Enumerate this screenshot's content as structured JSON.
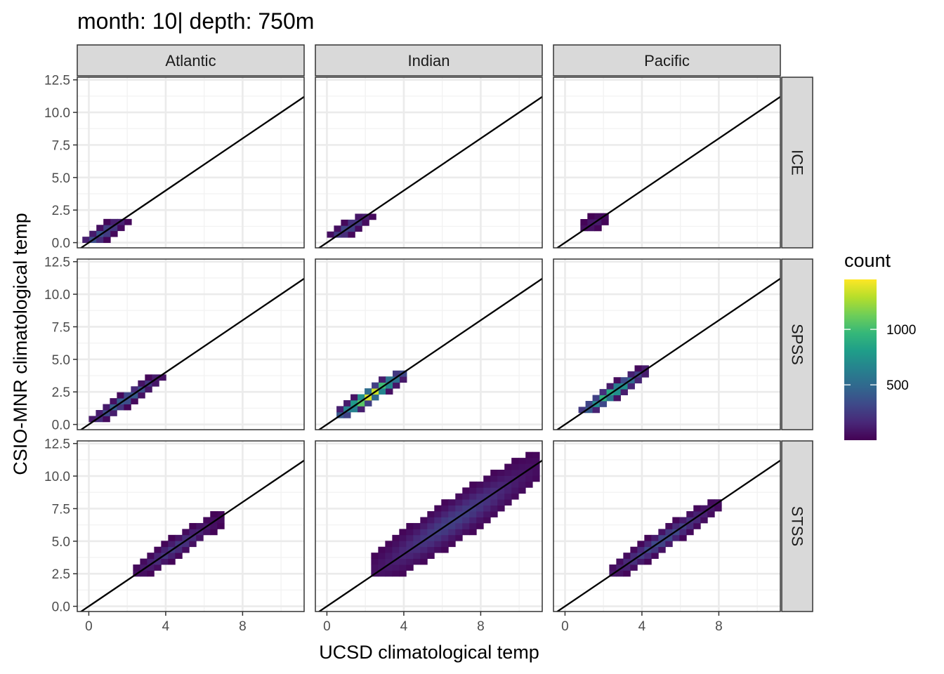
{
  "title": "month: 10| depth: 750m",
  "chart_data": {
    "type": "heatmap",
    "subtype": "faceted-2d-bin-count",
    "title": "month: 10| depth: 750m",
    "xlabel": "UCSD climatological temp",
    "ylabel": "CSIO-MNR climatological temp",
    "xlim": [
      -0.6,
      11.2
    ],
    "ylim": [
      -0.4,
      12.7
    ],
    "x_ticks": [
      0,
      4,
      8
    ],
    "y_ticks": [
      0.0,
      2.5,
      5.0,
      7.5,
      10.0,
      12.5
    ],
    "x_tick_labels": [
      "0",
      "4",
      "8"
    ],
    "y_tick_labels": [
      "0.0",
      "2.5",
      "5.0",
      "7.5",
      "10.0",
      "12.5"
    ],
    "grid": true,
    "facet_columns": [
      "Atlantic",
      "Indian",
      "Pacific"
    ],
    "facet_rows": [
      "ICE",
      "SPSS",
      "STSS"
    ],
    "reference_line": {
      "slope": 1,
      "intercept": 0
    },
    "legend": {
      "title": "count",
      "position": "right",
      "min": 1,
      "max": 1450,
      "ticks": [
        500,
        1000
      ],
      "tick_labels": [
        "500",
        "1000"
      ],
      "colors": [
        "#440154",
        "#482878",
        "#3e4989",
        "#31688e",
        "#26828e",
        "#1f9e89",
        "#35b779",
        "#6ece58",
        "#b5de2b",
        "#fde725"
      ]
    },
    "panels": [
      {
        "column": "Atlantic",
        "row": "ICE",
        "x_range": [
          -0.7,
          1.9
        ],
        "y_range": [
          0.0,
          1.8
        ],
        "peak_count": 400,
        "cluster_width": 0.45
      },
      {
        "column": "Indian",
        "row": "ICE",
        "x_range": [
          0.0,
          2.2
        ],
        "y_range": [
          0.4,
          1.9
        ],
        "peak_count": 350,
        "cluster_width": 0.45
      },
      {
        "column": "Pacific",
        "row": "ICE",
        "x_range": [
          0.8,
          2.2
        ],
        "y_range": [
          0.9,
          1.9
        ],
        "peak_count": 120,
        "cluster_width": 0.45
      },
      {
        "column": "Atlantic",
        "row": "SPSS",
        "x_range": [
          0.0,
          3.7
        ],
        "y_range": [
          0.2,
          3.7
        ],
        "peak_count": 500,
        "cluster_width": 0.4
      },
      {
        "column": "Indian",
        "row": "SPSS",
        "x_range": [
          0.5,
          4.0
        ],
        "y_range": [
          0.5,
          4.1
        ],
        "peak_count": 1400,
        "cluster_width": 0.45
      },
      {
        "column": "Pacific",
        "row": "SPSS",
        "x_range": [
          0.7,
          4.0
        ],
        "y_range": [
          0.9,
          4.5
        ],
        "peak_count": 1000,
        "cluster_width": 0.45
      },
      {
        "column": "Atlantic",
        "row": "STSS",
        "x_range": [
          2.3,
          6.7
        ],
        "y_range": [
          2.3,
          7.8
        ],
        "peak_count": 250,
        "cluster_width": 0.6
      },
      {
        "column": "Indian",
        "row": "STSS",
        "x_range": [
          2.3,
          10.8
        ],
        "y_range": [
          2.3,
          12.2
        ],
        "peak_count": 280,
        "cluster_width": 1.3
      },
      {
        "column": "Pacific",
        "row": "STSS",
        "x_range": [
          2.3,
          7.8
        ],
        "y_range": [
          2.3,
          7.8
        ],
        "peak_count": 350,
        "cluster_width": 0.6
      }
    ]
  }
}
